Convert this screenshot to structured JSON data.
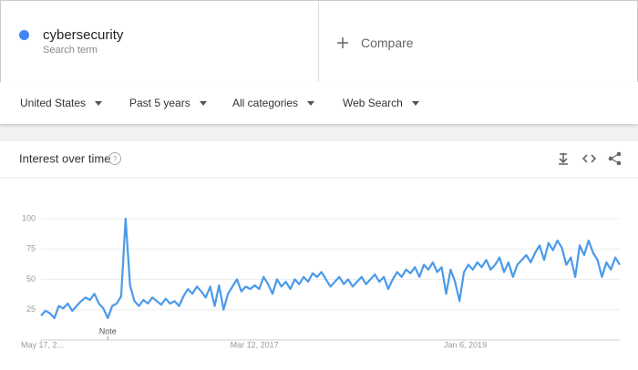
{
  "search": {
    "term": "cybersecurity",
    "subtitle": "Search term",
    "compare": "Compare"
  },
  "filters": [
    "United States",
    "Past 5 years",
    "All categories",
    "Web Search"
  ],
  "card": {
    "title": "Interest over time"
  },
  "chart_data": {
    "type": "line",
    "color": "#4a9ae8",
    "grid": true,
    "values": [
      20,
      24,
      22,
      18,
      28,
      26,
      30,
      24,
      28,
      32,
      35,
      33,
      38,
      30,
      26,
      18,
      28,
      30,
      36,
      100,
      45,
      32,
      28,
      33,
      30,
      35,
      32,
      29,
      34,
      30,
      32,
      28,
      36,
      42,
      38,
      44,
      40,
      35,
      44,
      28,
      45,
      25,
      38,
      44,
      50,
      40,
      44,
      42,
      45,
      42,
      52,
      46,
      38,
      50,
      44,
      48,
      42,
      50,
      46,
      52,
      48,
      55,
      52,
      56,
      50,
      44,
      48,
      52,
      46,
      50,
      44,
      48,
      52,
      46,
      50,
      54,
      48,
      52,
      42,
      50,
      56,
      52,
      58,
      55,
      60,
      52,
      62,
      58,
      64,
      56,
      60,
      38,
      58,
      48,
      32,
      56,
      62,
      58,
      64,
      60,
      66,
      58,
      62,
      68,
      56,
      64,
      52,
      62,
      66,
      70,
      64,
      72,
      78,
      66,
      80,
      74,
      82,
      76,
      62,
      68,
      52,
      78,
      70,
      82,
      72,
      66,
      52,
      64,
      58,
      68,
      62
    ],
    "xlim": [
      0,
      130
    ],
    "xticks": [
      {
        "value": 0,
        "label": "May 17, 2..."
      },
      {
        "value": 47,
        "label": "Mar 12, 2017"
      },
      {
        "value": 95,
        "label": "Jan 6, 2019"
      }
    ],
    "ylim": [
      0,
      100
    ],
    "yticks": [
      25,
      50,
      75,
      100
    ],
    "annotation": {
      "x": 15,
      "text": "Note"
    }
  }
}
